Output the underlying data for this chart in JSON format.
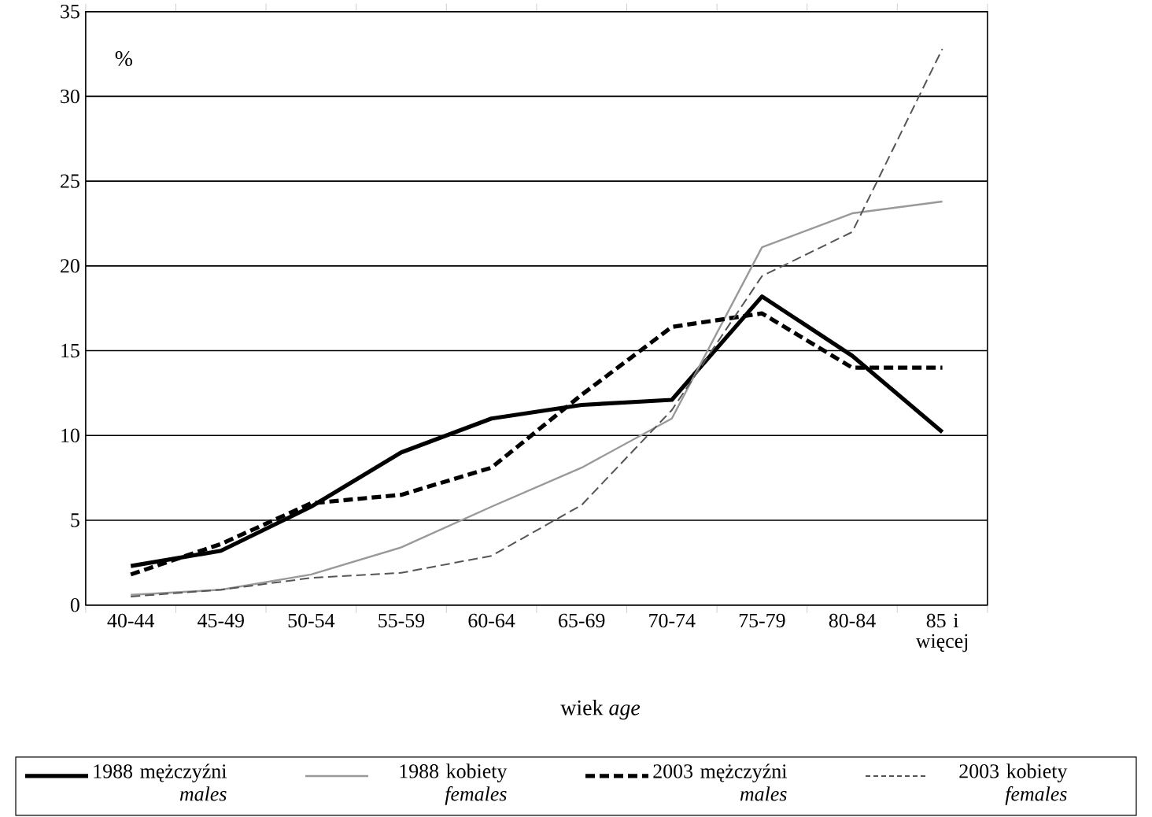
{
  "chart_data": {
    "type": "line",
    "xlabel": "wiek *age*",
    "ylabel": "%",
    "categories": [
      "40-44",
      "45-49",
      "50-54",
      "55-59",
      "60-64",
      "65-69",
      "70-74",
      "75-79",
      "80-84",
      "85 i więcej"
    ],
    "ylim": [
      0,
      35
    ],
    "yticks": [
      0,
      5,
      10,
      15,
      20,
      25,
      30,
      35
    ],
    "grid": "y",
    "legend": "bottom",
    "series": [
      {
        "name": "1988 mężczyźni *males*",
        "color": "#000000",
        "line_style": "solid",
        "values": [
          2.3,
          3.2,
          5.8,
          9.0,
          11.0,
          11.8,
          12.1,
          18.2,
          14.7,
          10.2
        ]
      },
      {
        "name": "1988 kobiety *females*",
        "color": "#999999",
        "line_style": "solid",
        "values": [
          0.6,
          0.9,
          1.8,
          3.4,
          5.8,
          8.1,
          11.0,
          21.1,
          23.1,
          23.8
        ]
      },
      {
        "name": "2003 mężczyźni *males*",
        "color": "#000000",
        "line_style": "dashed",
        "values": [
          1.8,
          3.6,
          6.0,
          6.5,
          8.1,
          12.4,
          16.4,
          17.2,
          14.0,
          14.0
        ]
      },
      {
        "name": "2003 kobiety *females*",
        "color": "#555555",
        "line_style": "dashed",
        "values": [
          0.5,
          0.9,
          1.6,
          1.9,
          2.9,
          5.9,
          11.5,
          19.4,
          22.0,
          32.8
        ]
      }
    ]
  }
}
